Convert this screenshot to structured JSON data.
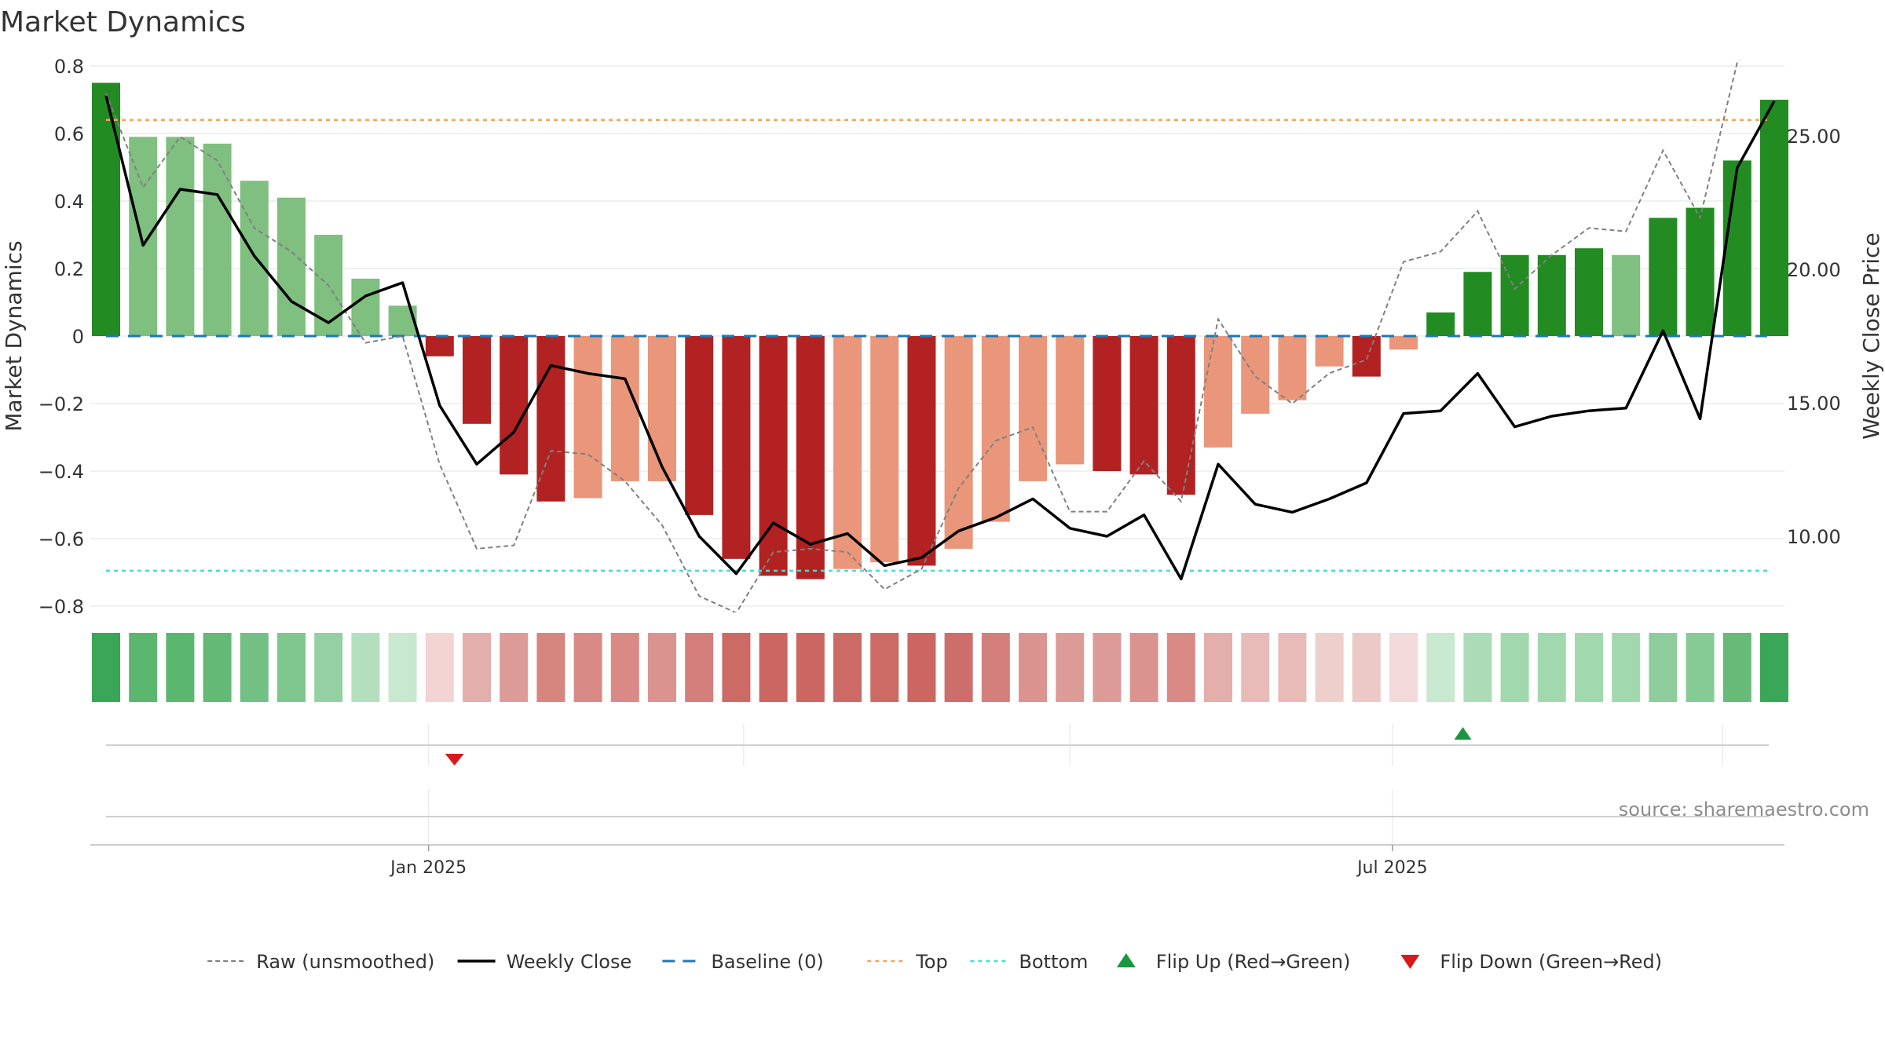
{
  "title": "Market Dynamics",
  "source_text": "source: sharemaestro.com",
  "colors": {
    "strong_green": "#228b22",
    "light_green": "#7fbf7f",
    "strong_red": "#b22222",
    "light_red": "#e9967a",
    "close_line": "#000000",
    "raw_line": "#808080",
    "baseline": "#1f77b4",
    "top": "#f4a460",
    "bottom": "#40e0d0",
    "flip_up": "#1a9641",
    "flip_down": "#d7191c"
  },
  "chart_data": {
    "type": "bar",
    "weeks": 46,
    "left_axis": {
      "label": "Market Dynamics",
      "ylim": [
        -0.8,
        0.8
      ],
      "ticks": [
        "0.8",
        "0.6",
        "0.4",
        "0.2",
        "0",
        "−0.2",
        "−0.4",
        "−0.6",
        "−0.8"
      ],
      "tick_values": [
        0.8,
        0.6,
        0.4,
        0.2,
        0,
        -0.2,
        -0.4,
        -0.6,
        -0.8
      ]
    },
    "right_axis": {
      "label": "Weekly Close Price",
      "ticks": [
        "25.00",
        "20.00",
        "15.00",
        "10.00"
      ],
      "tick_values": [
        25,
        20,
        15,
        10
      ]
    },
    "x_ticks": [
      {
        "label": "Jan 2025",
        "week": 8.7
      },
      {
        "label": "Jul 2025",
        "week": 34.7
      }
    ],
    "x_minor_weeks": [
      17.2,
      26,
      43.6
    ],
    "values": [
      0.75,
      0.59,
      0.59,
      0.57,
      0.46,
      0.41,
      0.3,
      0.17,
      0.09,
      -0.06,
      -0.26,
      -0.41,
      -0.49,
      -0.48,
      -0.43,
      -0.43,
      -0.53,
      -0.66,
      -0.71,
      -0.72,
      -0.69,
      -0.67,
      -0.68,
      -0.63,
      -0.55,
      -0.43,
      -0.38,
      -0.4,
      -0.41,
      -0.47,
      -0.33,
      -0.23,
      -0.19,
      -0.09,
      -0.12,
      -0.04,
      0.07,
      0.19,
      0.24,
      0.24,
      0.26,
      0.24,
      0.35,
      0.38,
      0.52,
      0.7
    ],
    "strength": [
      "strong",
      "light",
      "light",
      "light",
      "light",
      "light",
      "light",
      "light",
      "light",
      "strong",
      "strong",
      "strong",
      "strong",
      "light",
      "light",
      "light",
      "strong",
      "strong",
      "strong",
      "strong",
      "light",
      "light",
      "strong",
      "light",
      "light",
      "light",
      "light",
      "strong",
      "strong",
      "strong",
      "light",
      "light",
      "light",
      "light",
      "strong",
      "light",
      "strong",
      "strong",
      "strong",
      "strong",
      "strong",
      "light",
      "strong",
      "strong",
      "strong",
      "strong"
    ],
    "strip_colors": [
      "#3aa758",
      "#5bb66f",
      "#5bb66f",
      "#63b975",
      "#72c083",
      "#7fc68e",
      "#95d0a2",
      "#b3dfbe",
      "#c8e8cf",
      "#f4d3d3",
      "#e3aeac",
      "#dd9b98",
      "#d6867f",
      "#d98a86",
      "#d98a86",
      "#db938f",
      "#d47f7b",
      "#cc6a66",
      "#cc6662",
      "#cc6662",
      "#cc6a66",
      "#cc6a66",
      "#cc6662",
      "#ce6e6a",
      "#d47f7b",
      "#db938f",
      "#dd9b98",
      "#dd9b98",
      "#db938f",
      "#d98a86",
      "#e3aeac",
      "#e8bbb8",
      "#e8bbb8",
      "#eecfcc",
      "#ecc9c6",
      "#f2dada",
      "#c8e8cf",
      "#acdcb7",
      "#a2d8ae",
      "#a2d8ae",
      "#a2d8ae",
      "#a2d8ae",
      "#8dcd9b",
      "#86ca95",
      "#67ba78",
      "#3aa758"
    ],
    "weekly_close": [
      26.5,
      20.9,
      23.0,
      22.8,
      20.5,
      18.8,
      18.0,
      19.0,
      19.5,
      14.9,
      12.7,
      13.9,
      16.4,
      16.1,
      15.9,
      12.6,
      10.0,
      8.6,
      10.5,
      9.7,
      10.1,
      8.9,
      9.2,
      10.2,
      10.7,
      11.4,
      10.3,
      10.0,
      10.8,
      8.4,
      12.7,
      11.2,
      10.9,
      11.4,
      12.0,
      14.6,
      14.7,
      16.1,
      14.1,
      14.5,
      14.7,
      14.8,
      17.7,
      14.4,
      23.8,
      26.3
    ],
    "raw_values": [
      0.72,
      0.44,
      0.59,
      0.52,
      0.32,
      0.25,
      0.15,
      -0.02,
      0.0,
      -0.38,
      -0.63,
      -0.62,
      -0.34,
      -0.35,
      -0.43,
      -0.56,
      -0.77,
      -0.82,
      -0.64,
      -0.63,
      -0.64,
      -0.75,
      -0.69,
      -0.45,
      -0.31,
      -0.27,
      -0.52,
      -0.52,
      -0.37,
      -0.49,
      0.05,
      -0.12,
      -0.2,
      -0.11,
      -0.07,
      0.22,
      0.25,
      0.37,
      0.14,
      0.24,
      0.32,
      0.31,
      0.55,
      0.35,
      0.81,
      0.97
    ],
    "baseline": 0,
    "top": 0.64,
    "bottom": -0.695,
    "flips": [
      {
        "type": "down",
        "week": 9.4
      },
      {
        "type": "up",
        "week": 36.6
      }
    ],
    "legend_placement": "bottom",
    "grid": true
  },
  "legend": {
    "items": [
      {
        "key": "raw",
        "label": "Raw (unsmoothed)"
      },
      {
        "key": "close",
        "label": "Weekly Close"
      },
      {
        "key": "baseline",
        "label": "Baseline (0)"
      },
      {
        "key": "top",
        "label": "Top"
      },
      {
        "key": "bottom",
        "label": "Bottom"
      },
      {
        "key": "flip_up",
        "label": "Flip Up (Red→Green)"
      },
      {
        "key": "flip_down",
        "label": "Flip Down (Green→Red)"
      }
    ]
  }
}
